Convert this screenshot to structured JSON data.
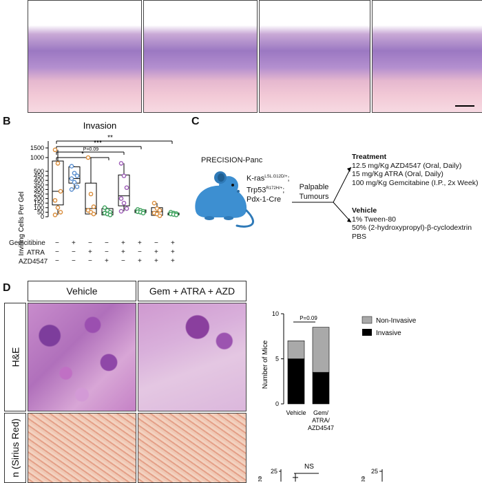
{
  "panel_b": {
    "letter": "B",
    "title": "Invasion",
    "ylabel": "Inviting Cells Per Gel",
    "row_labels": [
      "Gemcitibine",
      "ATRA",
      "AZD4547"
    ],
    "signs": [
      [
        "−",
        "+",
        "−",
        "−",
        "+",
        "+",
        "−",
        "+"
      ],
      [
        "−",
        "−",
        "+",
        "−",
        "+",
        "−",
        "+",
        "+"
      ],
      [
        "−",
        "−",
        "−",
        "+",
        "−",
        "+",
        "+",
        "+"
      ]
    ],
    "annotations": [
      "**",
      "***",
      "P=0.09",
      "*"
    ]
  },
  "panel_c": {
    "letter": "C",
    "model_title": "PRECISION-Panc",
    "genotype_1": "K-ras",
    "genotype_1_sup": "LSL.G12D/+",
    "genotype_1_suffix": ";",
    "genotype_2": "Trp53",
    "genotype_2_sup": "R172H/+",
    "genotype_2_suffix": ";",
    "genotype_3": "Pdx-1-Cre",
    "palpable": "Palpable",
    "tumours": "Tumours",
    "treatment_title": "Treatment",
    "treatment_lines": [
      "12.5 mg/Kg AZD4547 (Oral, Daily)",
      "15 mg/Kg ATRA (Oral, Daily)",
      "100 mg/Kg Gemcitabine (I.P., 2x Week)"
    ],
    "vehicle_title": "Vehicle",
    "vehicle_lines": [
      "1% Tween-80",
      "50% (2-hydroxypropyl)-β-cyclodextrin",
      "PBS"
    ]
  },
  "panel_d": {
    "letter": "D",
    "col_labels": [
      "Vehicle",
      "Gem + ATRA + AZD"
    ],
    "row_label_he": "H&E",
    "row_label_sirius": "n (Sirius Red)"
  },
  "chart_data": [
    {
      "type": "scatter",
      "title": "Invasion",
      "ylabel": "Inviting Cells Per Gel",
      "y_axis_ticks": [
        0,
        50,
        100,
        150,
        200,
        250,
        300,
        350,
        400,
        450,
        500,
        1000,
        1500
      ],
      "groups": [
        {
          "points": [
            1400,
            700,
            280,
            180,
            100,
            50,
            20
          ],
          "box": [
            130,
            280,
            820
          ],
          "color": "#d98c3a"
        },
        {
          "points": [
            550,
            480,
            450,
            420,
            380,
            330,
            300
          ],
          "box": [
            370,
            420,
            520
          ],
          "color": "#5a8fd0"
        },
        {
          "points": [
            1000,
            250,
            110,
            70,
            50,
            30
          ],
          "box": [
            30,
            90,
            370
          ],
          "color": "#d98c3a"
        },
        {
          "points": [
            100,
            70,
            50,
            40,
            30,
            20
          ],
          "box": [
            20,
            50,
            90
          ],
          "color": "#3aa05a"
        },
        {
          "points": [
            700,
            450,
            320,
            200,
            150,
            90,
            60
          ],
          "box": [
            120,
            230,
            460
          ],
          "color": "#9b59b6"
        },
        {
          "points": [
            80,
            70,
            60,
            55,
            50,
            40
          ],
          "box": [
            45,
            60,
            75
          ],
          "color": "#3aa05a"
        },
        {
          "points": [
            150,
            90,
            70,
            40,
            30,
            10
          ],
          "box": [
            15,
            55,
            100
          ],
          "color": "#d98c3a"
        },
        {
          "points": [
            50,
            40,
            35,
            30,
            25,
            20
          ],
          "box": [
            20,
            30,
            40
          ],
          "color": "#3aa05a"
        }
      ]
    },
    {
      "type": "bar",
      "stacked": true,
      "ylabel": "Number of Mice",
      "ylim": [
        0,
        10
      ],
      "y_ticks": [
        0,
        5,
        10
      ],
      "categories": [
        "Vehicle",
        "Gem/ ATRA/ AZD4547"
      ],
      "series": [
        {
          "name": "Invasive",
          "values": [
            5,
            3.5
          ],
          "color": "#000000"
        },
        {
          "name": "Non-Invasive",
          "values": [
            2,
            5
          ],
          "color": "#a9a9a9"
        }
      ],
      "annotation": "P=0.09",
      "legend": "right"
    },
    {
      "type": "bar",
      "y_ticks_visible": [
        25
      ],
      "annotation": "NS",
      "label_fragment": "ea"
    },
    {
      "type": "bar",
      "y_ticks_visible": [
        25
      ],
      "label_fragment": "ea"
    }
  ]
}
